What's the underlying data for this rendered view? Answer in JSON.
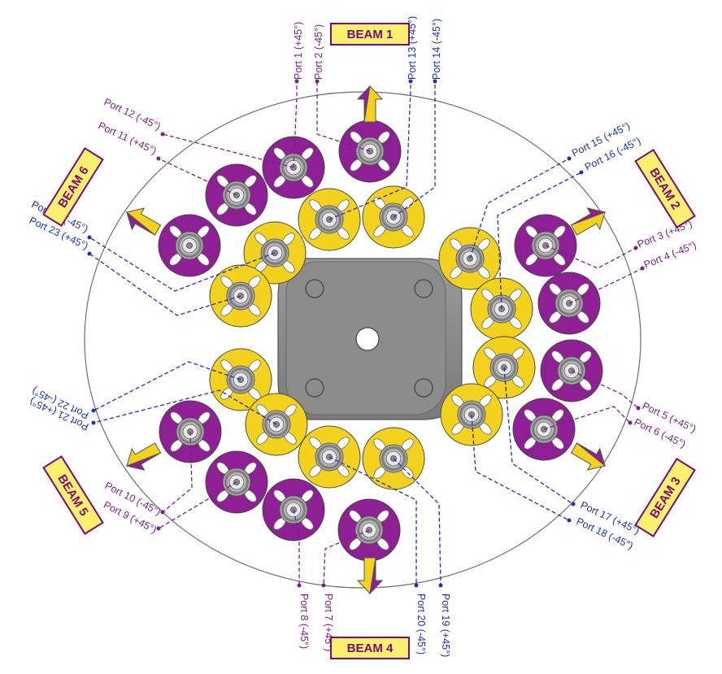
{
  "colors": {
    "purple_element": "#8e1f94",
    "yellow_element": "#f2d21c",
    "beam_box_fill": "#fbf16e",
    "beam_box_text": "#7a0a78",
    "purple_line": "#7a1f8a",
    "blue_line": "#1d2fbf",
    "plate": "#8a8a8a"
  },
  "beams": [
    {
      "label": "BEAM  1"
    },
    {
      "label": "BEAM  2"
    },
    {
      "label": "BEAM  3"
    },
    {
      "label": "BEAM  4"
    },
    {
      "label": "BEAM  5"
    },
    {
      "label": "BEAM  6"
    }
  ],
  "ports": [
    {
      "label": "Port  1 (+45°)"
    },
    {
      "label": "Port  2  (-45°)"
    },
    {
      "label": "Port  3 (+45°)"
    },
    {
      "label": "Port  4 (-45°)"
    },
    {
      "label": "Port  5 (+45°)"
    },
    {
      "label": "Port  6 (-45°)"
    },
    {
      "label": "Port  7 (+45°)"
    },
    {
      "label": "Port  8 (-45°)"
    },
    {
      "label": "Port  9 (+45°)"
    },
    {
      "label": "Port 10 (-45°)"
    },
    {
      "label": "Port 11 (+45°)"
    },
    {
      "label": "Port 12 (-45°)"
    },
    {
      "label": "Port 13 (+45°)"
    },
    {
      "label": "Port 14 (-45°)"
    },
    {
      "label": "Port 15 (+45°)"
    },
    {
      "label": "Port 16 (-45°)"
    },
    {
      "label": "Port 17 (+45°)"
    },
    {
      "label": "Port 18 (-45°)"
    },
    {
      "label": "Port 19 (+45°)"
    },
    {
      "label": "Port 20 (-45°)"
    },
    {
      "label": "Port 21 (+45°)"
    },
    {
      "label": "Port 22 (-45°)"
    },
    {
      "label": "Port 23 (+45°)"
    },
    {
      "label": "Port 24 (-45°)"
    }
  ]
}
